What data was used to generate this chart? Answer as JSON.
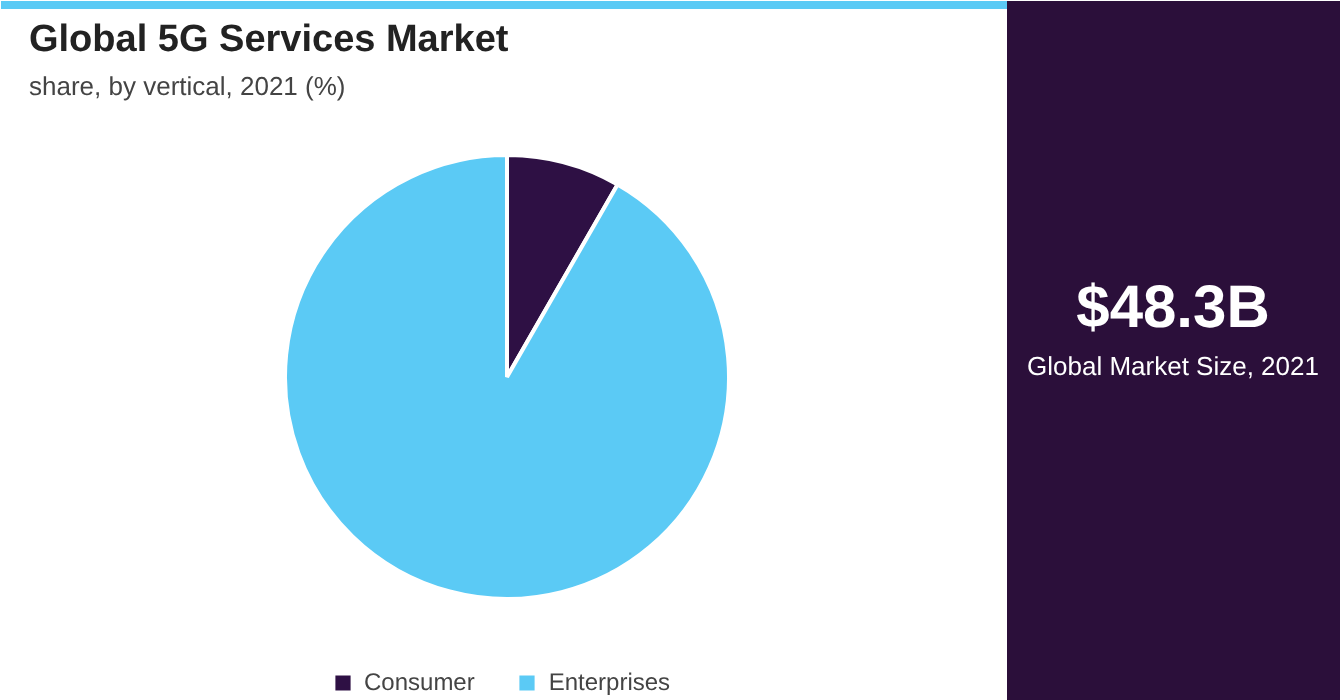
{
  "chart_data": {
    "type": "pie",
    "title": "Global 5G Services Market",
    "subtitle": "share, by vertical, 2021 (%)",
    "categories": [
      "Consumer",
      "Enterprises"
    ],
    "values": [
      8.3,
      91.7
    ],
    "colors": [
      "#2e1044",
      "#5bcaf5"
    ],
    "legend": "bottom",
    "annotations": [
      "$48.3B",
      "Global Market Size, 2021"
    ]
  }
}
